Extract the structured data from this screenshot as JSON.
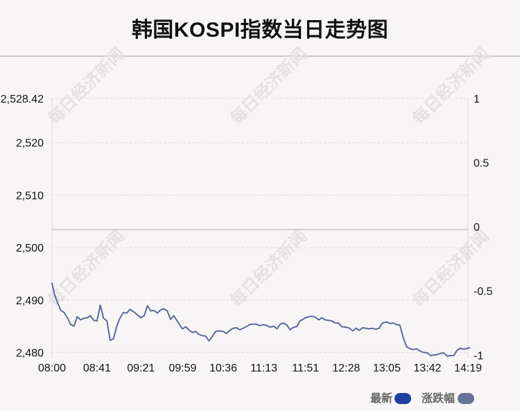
{
  "chart_data": {
    "type": "line",
    "title": "韩国KOSPI指数当日走势图",
    "watermark": "每日经济新闻",
    "y_left_ticks": [
      "2,528.42",
      "2,520",
      "2,510",
      "2,500",
      "2,490",
      "2,480"
    ],
    "y_left_ticks_values": [
      2528.42,
      2520,
      2510,
      2500,
      2490,
      2480
    ],
    "y_right_ticks": [
      "1",
      "0.5",
      "0",
      "-0.5",
      "-1"
    ],
    "y_right_ticks_values": [
      1,
      0.5,
      0,
      -0.5,
      -1
    ],
    "x_ticks": [
      "08:00",
      "08:41",
      "09:21",
      "09:59",
      "10:36",
      "11:13",
      "11:51",
      "12:28",
      "13:05",
      "13:42",
      "14:19"
    ],
    "ylim_left": [
      2479,
      2528.42
    ],
    "ylim_right": [
      -1.02,
      1
    ],
    "reference_value": 2503.4,
    "series": [
      {
        "name": "最新",
        "color": "#5a6a98",
        "x": [
          "08:00",
          "08:02",
          "08:05",
          "08:08",
          "08:11",
          "08:14",
          "08:17",
          "08:20",
          "08:23",
          "08:26",
          "08:29",
          "08:32",
          "08:35",
          "08:38",
          "08:41",
          "08:44",
          "08:47",
          "08:50",
          "08:53",
          "08:56",
          "08:59",
          "09:02",
          "09:05",
          "09:08",
          "09:11",
          "09:14",
          "09:17",
          "09:21",
          "09:24",
          "09:27",
          "09:30",
          "09:33",
          "09:36",
          "09:39",
          "09:42",
          "09:45",
          "09:48",
          "09:51",
          "09:54",
          "09:57",
          "09:59",
          "10:02",
          "10:05",
          "10:08",
          "10:11",
          "10:14",
          "10:17",
          "10:20",
          "10:23",
          "10:26",
          "10:29",
          "10:32",
          "10:36",
          "10:39",
          "10:42",
          "10:45",
          "10:48",
          "10:51",
          "10:54",
          "10:57",
          "11:00",
          "11:03",
          "11:06",
          "11:09",
          "11:13",
          "11:16",
          "11:19",
          "11:22",
          "11:25",
          "11:28",
          "11:31",
          "11:34",
          "11:37",
          "11:40",
          "11:43",
          "11:46",
          "11:51",
          "11:54",
          "11:57",
          "12:00",
          "12:03",
          "12:06",
          "12:09",
          "12:12",
          "12:15",
          "12:18",
          "12:21",
          "12:24",
          "12:28",
          "12:31",
          "12:34",
          "12:37",
          "12:40",
          "12:43",
          "12:46",
          "12:49",
          "12:52",
          "12:55",
          "12:58",
          "13:01",
          "13:05",
          "13:08",
          "13:11",
          "13:14",
          "13:17",
          "13:20",
          "13:23",
          "13:26",
          "13:29",
          "13:32",
          "13:35",
          "13:38",
          "13:42",
          "13:45",
          "13:48",
          "13:51",
          "13:54",
          "13:57",
          "14:00",
          "14:03",
          "14:06",
          "14:09",
          "14:12",
          "14:15",
          "14:19",
          "14:21"
        ],
        "values": [
          2493.3,
          2491.2,
          2489.5,
          2488.0,
          2487.6,
          2486.6,
          2485.3,
          2485.0,
          2486.8,
          2486.2,
          2486.5,
          2486.6,
          2487.0,
          2486.1,
          2486.0,
          2489.0,
          2486.5,
          2486.0,
          2482.3,
          2482.6,
          2485.0,
          2486.6,
          2487.6,
          2487.5,
          2488.2,
          2487.8,
          2487.3,
          2486.6,
          2487.0,
          2488.9,
          2487.9,
          2488.0,
          2487.5,
          2488.1,
          2488.3,
          2487.9,
          2486.3,
          2487.0,
          2486.0,
          2485.0,
          2484.5,
          2484.9,
          2484.2,
          2483.8,
          2484.0,
          2483.4,
          2483.2,
          2483.1,
          2482.2,
          2483.0,
          2484.0,
          2484.1,
          2484.0,
          2483.6,
          2484.2,
          2484.6,
          2484.7,
          2484.3,
          2484.6,
          2484.9,
          2485.3,
          2485.4,
          2485.4,
          2485.1,
          2485.3,
          2485.1,
          2484.8,
          2485.0,
          2484.5,
          2485.4,
          2485.6,
          2485.2,
          2484.3,
          2484.8,
          2484.9,
          2486.0,
          2486.6,
          2486.8,
          2486.9,
          2486.7,
          2486.2,
          2486.6,
          2486.2,
          2486.1,
          2486.0,
          2485.6,
          2485.6,
          2484.9,
          2484.8,
          2484.6,
          2484.1,
          2484.6,
          2484.2,
          2484.7,
          2484.6,
          2484.5,
          2484.6,
          2484.4,
          2484.6,
          2485.6,
          2485.8,
          2485.5,
          2485.6,
          2485.3,
          2485.2,
          2482.8,
          2481.1,
          2480.7,
          2480.5,
          2480.7,
          2480.3,
          2480.0,
          2479.9,
          2479.4,
          2479.5,
          2479.6,
          2479.8,
          2479.9,
          2479.3,
          2479.4,
          2479.4,
          2480.4,
          2480.8,
          2480.6,
          2480.8,
          2480.9
        ]
      },
      {
        "name": "涨跌幅",
        "color": "#667399"
      }
    ],
    "legend_position": "bottom-right",
    "grid": true
  }
}
